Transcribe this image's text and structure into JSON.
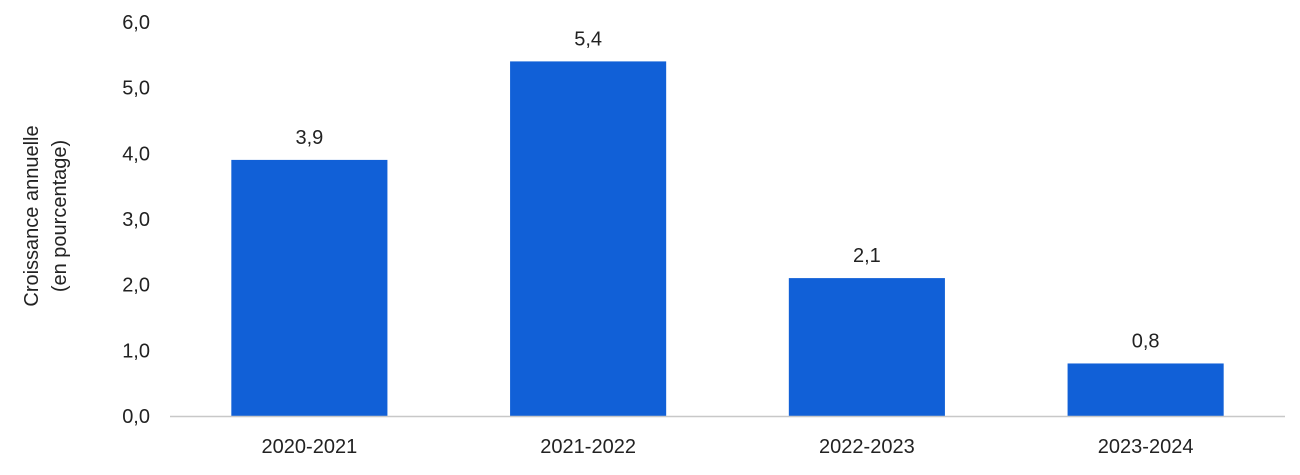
{
  "chart_data": {
    "type": "bar",
    "categories": [
      "2020-2021",
      "2021-2022",
      "2022-2023",
      "2023-2024"
    ],
    "values": [
      3.9,
      5.4,
      2.1,
      0.8
    ],
    "value_labels": [
      "3,9",
      "5,4",
      "2,1",
      "0,8"
    ],
    "title": "",
    "xlabel": "",
    "ylabel_lines": [
      "Croissance annuelle",
      "(en pourcentage)"
    ],
    "ylim": [
      0,
      6
    ],
    "yticks": [
      0,
      1,
      2,
      3,
      4,
      5,
      6
    ],
    "ytick_labels": [
      "0,0",
      "1,0",
      "2,0",
      "3,0",
      "4,0",
      "5,0",
      "6,0"
    ],
    "grid": false,
    "bar_color": "#1160D7",
    "axis_color": "#C8C8C8"
  }
}
